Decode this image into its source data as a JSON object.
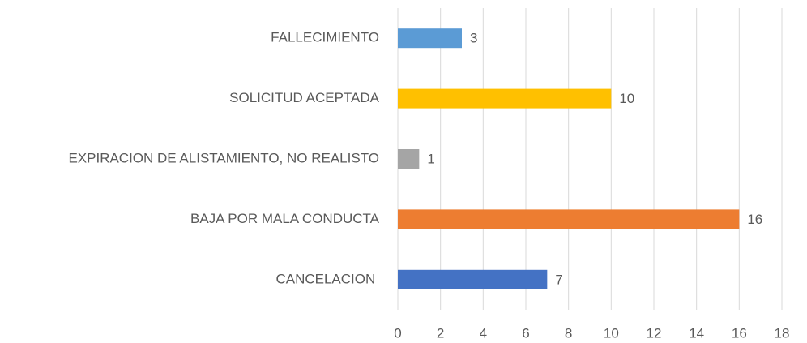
{
  "chart_data": {
    "type": "bar",
    "orientation": "horizontal",
    "categories": [
      "FALLECIMIENTO",
      "SOLICITUD ACEPTADA",
      "EXPIRACION DE ALISTAMIENTO, NO REALISTO",
      "BAJA POR MALA CONDUCTA",
      "CANCELACION "
    ],
    "values": [
      3,
      10,
      1,
      16,
      7
    ],
    "colors": [
      "#5b9bd5",
      "#ffc000",
      "#a5a5a5",
      "#ed7d31",
      "#4472c4"
    ],
    "xlim": [
      0,
      18
    ],
    "xticks": [
      0,
      2,
      4,
      6,
      8,
      10,
      12,
      14,
      16,
      18
    ],
    "grid": true
  }
}
